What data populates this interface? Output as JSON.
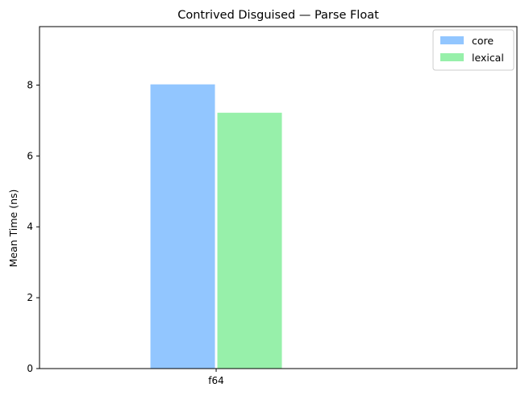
{
  "chart_data": {
    "type": "bar",
    "title": "Contrived Disguised — Parse Float",
    "xlabel": "",
    "ylabel": "Mean Time (ns)",
    "categories": [
      "f64"
    ],
    "series": [
      {
        "name": "core",
        "color": "#92c6ff",
        "values": [
          8.02
        ]
      },
      {
        "name": "lexical",
        "color": "#97f0aa",
        "values": [
          7.22
        ]
      }
    ],
    "ylim": [
      0,
      9.65
    ],
    "yticks": [
      0,
      2,
      4,
      6,
      8
    ],
    "legend": "top-right",
    "grid": false
  }
}
